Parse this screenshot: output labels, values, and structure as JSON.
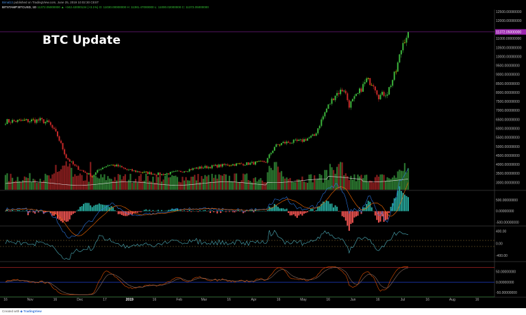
{
  "header": {
    "author": "Bimal2J",
    "published": "published on TradingView.com, June 25, 2019 10:02:30 CEST",
    "symbol": "BITSTAMP:BTCUSD, 1D",
    "ohlc": "11372.05000000 ▲ +342.42000134 (+3.1%) O: 11030.00000000 H: 11381.47000000 L: 11000.02000000 C: 11372.05000000"
  },
  "overlay_title": "BTC Update",
  "footer": {
    "created_with": "Created with",
    "brand": "TradingView"
  },
  "chart_data": [
    {
      "type": "candlestick",
      "title": "",
      "ylim": [
        2600,
        12500
      ],
      "yticks": [
        "12500.00000000",
        "12000.00000000",
        "11500.00000000",
        "11000.00000000",
        "10500.00000000",
        "10000.00000000",
        "9500.00000000",
        "9000.00000000",
        "8500.00000000",
        "8000.00000000",
        "7500.00000000",
        "7000.00000000",
        "6500.00000000",
        "6000.00000000",
        "5500.00000000",
        "5000.00000000",
        "4500.00000000",
        "4000.00000000",
        "3500.00000000",
        "3000.00000000"
      ],
      "ytick_values": [
        12500,
        12000,
        11500,
        11000,
        10500,
        10000,
        9500,
        9000,
        8500,
        8000,
        7500,
        7000,
        6500,
        6000,
        5500,
        5000,
        4500,
        4000,
        3500,
        3000
      ],
      "last_price_label": "11372.05000000",
      "last_price": 11372.05,
      "xticks": [
        "16",
        "Nov",
        "16",
        "Dec",
        "17",
        "2019",
        "16",
        "Feb",
        "Mar",
        "16",
        "Apr",
        "16",
        "May",
        "16",
        "Jun",
        "16",
        "Jul",
        "16",
        "Aug",
        "16"
      ],
      "anchors": [
        {
          "i": 0,
          "v": 6400
        },
        {
          "i": 10,
          "v": 6420
        },
        {
          "i": 20,
          "v": 6460
        },
        {
          "i": 25,
          "v": 6300
        },
        {
          "i": 30,
          "v": 5600
        },
        {
          "i": 35,
          "v": 4400
        },
        {
          "i": 40,
          "v": 3900
        },
        {
          "i": 45,
          "v": 3600
        },
        {
          "i": 50,
          "v": 3350
        },
        {
          "i": 55,
          "v": 3800
        },
        {
          "i": 60,
          "v": 4000
        },
        {
          "i": 65,
          "v": 3900
        },
        {
          "i": 70,
          "v": 3700
        },
        {
          "i": 80,
          "v": 3550
        },
        {
          "i": 90,
          "v": 3450
        },
        {
          "i": 100,
          "v": 3600
        },
        {
          "i": 110,
          "v": 3800
        },
        {
          "i": 120,
          "v": 3900
        },
        {
          "i": 130,
          "v": 4000
        },
        {
          "i": 140,
          "v": 4050
        },
        {
          "i": 150,
          "v": 4150
        },
        {
          "i": 155,
          "v": 5000
        },
        {
          "i": 160,
          "v": 5200
        },
        {
          "i": 170,
          "v": 5300
        },
        {
          "i": 178,
          "v": 5600
        },
        {
          "i": 185,
          "v": 7100
        },
        {
          "i": 190,
          "v": 7900
        },
        {
          "i": 195,
          "v": 8200
        },
        {
          "i": 198,
          "v": 7300
        },
        {
          "i": 203,
          "v": 7900
        },
        {
          "i": 208,
          "v": 8700
        },
        {
          "i": 212,
          "v": 8500
        },
        {
          "i": 215,
          "v": 7800
        },
        {
          "i": 220,
          "v": 8000
        },
        {
          "i": 225,
          "v": 9200
        },
        {
          "i": 229,
          "v": 10800
        },
        {
          "i": 232,
          "v": 11372
        }
      ],
      "volume_range": [
        0,
        100
      ]
    },
    {
      "type": "macd",
      "ylim": [
        -600,
        900
      ],
      "yticks": [
        "500.00000000",
        "0.00000000",
        "-500.00000000"
      ],
      "ytick_values": [
        500,
        0,
        -500
      ]
    },
    {
      "type": "oscillator",
      "ylim": [
        -550,
        550
      ],
      "yticks": [
        "400.00",
        "0.00",
        "-400.00"
      ],
      "ytick_values": [
        400,
        0,
        -400
      ],
      "levels": [
        100,
        -100
      ]
    },
    {
      "type": "stochastic",
      "ylim": [
        -65,
        95
      ],
      "yticks": [
        "50.00000000",
        "0.00000000",
        "-50.00000000"
      ],
      "ytick_values": [
        50,
        0,
        -50
      ],
      "levels": [
        70,
        0,
        -70
      ]
    }
  ],
  "colors": {
    "up": "#3bb33b",
    "down": "#c62828",
    "doji": "#d4c400",
    "price_tag": "#9c27b0",
    "macd": "#2b78e4",
    "signal": "#ff6d00",
    "hist_up": "#26a69a",
    "hist_down": "#ef5350"
  }
}
